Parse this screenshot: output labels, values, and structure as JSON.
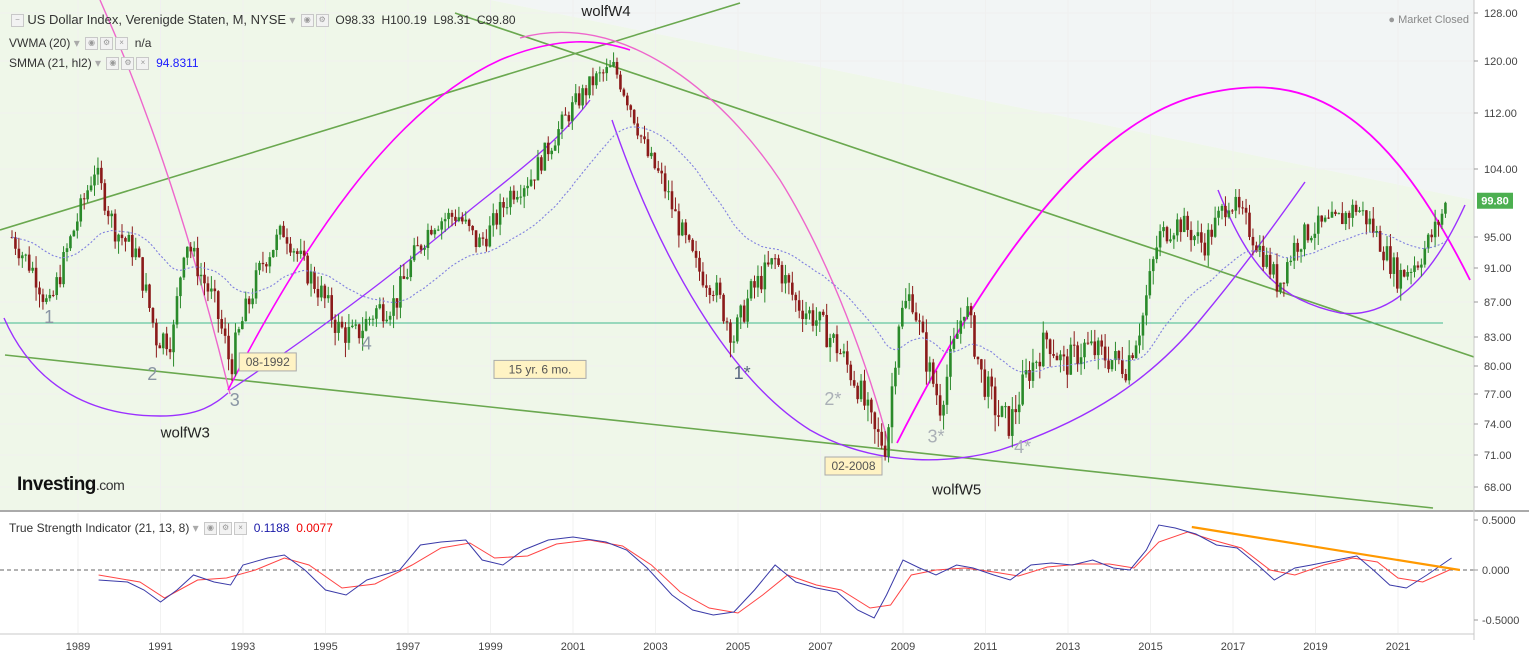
{
  "header": {
    "symbol": "US Dollar Index, Verenigde Staten, M, NYSE",
    "ohlc": {
      "open": "O98.33",
      "high": "H100.19",
      "low": "L98.31",
      "close": "C99.80"
    },
    "vwma": {
      "label": "VWMA (20)",
      "value": "n/a"
    },
    "smma": {
      "label": "SMMA (21, hl2)",
      "value": "94.8311"
    },
    "status": "Market Closed",
    "price_tag": "99.80"
  },
  "tsi_header": {
    "label": "True Strength Indicator (21, 13, 8)",
    "value1": "0.1188",
    "value2": "0.0077"
  },
  "logo": {
    "main": "Investing",
    "suffix": ".com"
  },
  "colors": {
    "up": "#2a8a2a",
    "down": "#8b1a1a",
    "wave": "#9b30ff",
    "arc_magenta": "#ff00ff",
    "arc_pink": "#ee66cc",
    "trend": "#6aa84f",
    "signal": "#ff4444",
    "tsi": "#3a3aa8",
    "divergence": "#ff9900",
    "price_tag": "#4caf50"
  },
  "chart_data": {
    "type": "candlestick",
    "x_axis": {
      "ticks": [
        "1989",
        "1991",
        "1993",
        "1995",
        "1997",
        "1999",
        "2001",
        "2003",
        "2005",
        "2007",
        "2009",
        "2011",
        "2013",
        "2015",
        "2017",
        "2019",
        "2021"
      ]
    },
    "y_axis": {
      "ticks": [
        "128.00",
        "120.00",
        "112.00",
        "104.00",
        "99.80",
        "95.00",
        "91.00",
        "87.00",
        "83.00",
        "80.00",
        "77.00",
        "74.00",
        "71.00",
        "68.00"
      ],
      "ylim": [
        66.5,
        129
      ]
    },
    "tsi_axis": {
      "ticks": [
        "0.5000",
        "0.000",
        "-0.5000"
      ],
      "ylim": [
        -0.55,
        0.56
      ]
    },
    "series_path": [
      [
        1987.4,
        95
      ],
      [
        1988.0,
        90
      ],
      [
        1988.3,
        86
      ],
      [
        1988.9,
        96
      ],
      [
        1989.4,
        104
      ],
      [
        1989.9,
        96
      ],
      [
        1990.4,
        93
      ],
      [
        1990.9,
        83
      ],
      [
        1991.3,
        83
      ],
      [
        1991.6,
        95
      ],
      [
        1992.0,
        90
      ],
      [
        1992.3,
        87
      ],
      [
        1992.7,
        80
      ],
      [
        1993.0,
        85
      ],
      [
        1993.5,
        92
      ],
      [
        1994.0,
        96
      ],
      [
        1994.5,
        91
      ],
      [
        1994.9,
        88
      ],
      [
        1995.3,
        84
      ],
      [
        1995.7,
        83
      ],
      [
        1996.2,
        86
      ],
      [
        1996.7,
        87
      ],
      [
        1997.1,
        92
      ],
      [
        1997.6,
        97
      ],
      [
        1998.2,
        98
      ],
      [
        1998.7,
        94
      ],
      [
        1999.0,
        96
      ],
      [
        1999.5,
        101
      ],
      [
        2000.0,
        103
      ],
      [
        2000.5,
        108
      ],
      [
        2001.0,
        113
      ],
      [
        2001.5,
        117
      ],
      [
        2002.0,
        119
      ],
      [
        2002.4,
        113
      ],
      [
        2002.8,
        106
      ],
      [
        2003.2,
        102
      ],
      [
        2003.6,
        96
      ],
      [
        2004.0,
        91
      ],
      [
        2004.4,
        89
      ],
      [
        2004.9,
        83
      ],
      [
        2005.3,
        88
      ],
      [
        2005.9,
        92
      ],
      [
        2006.4,
        87
      ],
      [
        2006.9,
        85
      ],
      [
        2007.4,
        82
      ],
      [
        2007.9,
        78
      ],
      [
        2008.3,
        73
      ],
      [
        2008.6,
        72
      ],
      [
        2008.9,
        85
      ],
      [
        2009.2,
        88
      ],
      [
        2009.6,
        80
      ],
      [
        2009.9,
        76
      ],
      [
        2010.3,
        83
      ],
      [
        2010.5,
        87
      ],
      [
        2010.9,
        79
      ],
      [
        2011.3,
        75
      ],
      [
        2011.6,
        74
      ],
      [
        2012.0,
        79
      ],
      [
        2012.5,
        83
      ],
      [
        2012.9,
        80
      ],
      [
        2013.4,
        82
      ],
      [
        2013.9,
        81
      ],
      [
        2014.4,
        80
      ],
      [
        2014.8,
        85
      ],
      [
        2015.2,
        95
      ],
      [
        2015.7,
        97
      ],
      [
        2016.3,
        94
      ],
      [
        2016.9,
        100
      ],
      [
        2017.3,
        97
      ],
      [
        2017.7,
        93
      ],
      [
        2018.1,
        89
      ],
      [
        2018.5,
        94
      ],
      [
        2018.9,
        96
      ],
      [
        2019.5,
        97
      ],
      [
        2020.0,
        99
      ],
      [
        2020.3,
        97
      ],
      [
        2020.7,
        93
      ],
      [
        2021.0,
        90
      ],
      [
        2021.5,
        92
      ],
      [
        2021.9,
        96
      ],
      [
        2022.2,
        99.8
      ]
    ],
    "annotations": [
      {
        "text": "1",
        "x": 1988.3,
        "y": 84.6
      },
      {
        "text": "2",
        "x": 1990.8,
        "y": 78.5
      },
      {
        "text": "3",
        "x": 1992.8,
        "y": 75.8
      },
      {
        "text": "4",
        "x": 1996.0,
        "y": 81.7
      },
      {
        "text": "1*",
        "x": 2005.1,
        "y": 78.6
      },
      {
        "text": "2*",
        "x": 2007.3,
        "y": 75.9
      },
      {
        "text": "3*",
        "x": 2009.8,
        "y": 72.2
      },
      {
        "text": "4*",
        "x": 2011.9,
        "y": 71.2
      },
      {
        "text": "wolfW3",
        "x": 1991.6,
        "y": 72.7
      },
      {
        "text": "wolfW4",
        "x": 2001.8,
        "y": 127.5
      },
      {
        "text": "wolfW5",
        "x": 2010.3,
        "y": 67.3
      }
    ],
    "boxed_labels": [
      {
        "text": "08-1992",
        "x": 1993.6,
        "y": 79.9
      },
      {
        "text": "15 yr. 6 mo.",
        "x": 2000.2,
        "y": 79.1
      },
      {
        "text": "02-2008",
        "x": 2007.8,
        "y": 69.5
      }
    ],
    "horizontal_level": 84.6,
    "tsi_series": [
      [
        1989.5,
        -0.1
      ],
      [
        1990.2,
        -0.12
      ],
      [
        1990.6,
        -0.2
      ],
      [
        1991.0,
        -0.32
      ],
      [
        1991.4,
        -0.2
      ],
      [
        1991.8,
        -0.05
      ],
      [
        1992.3,
        -0.12
      ],
      [
        1992.7,
        -0.15
      ],
      [
        1993.0,
        0.05
      ],
      [
        1993.6,
        0.12
      ],
      [
        1994.0,
        0.15
      ],
      [
        1994.5,
        0.0
      ],
      [
        1995.0,
        -0.2
      ],
      [
        1995.5,
        -0.25
      ],
      [
        1996.0,
        -0.1
      ],
      [
        1996.8,
        0.0
      ],
      [
        1997.3,
        0.25
      ],
      [
        1997.8,
        0.28
      ],
      [
        1998.4,
        0.3
      ],
      [
        1998.8,
        0.1
      ],
      [
        1999.3,
        0.05
      ],
      [
        1999.8,
        0.2
      ],
      [
        2000.4,
        0.3
      ],
      [
        2001.0,
        0.33
      ],
      [
        2001.8,
        0.28
      ],
      [
        2002.3,
        0.2
      ],
      [
        2002.8,
        0.02
      ],
      [
        2003.4,
        -0.25
      ],
      [
        2003.9,
        -0.4
      ],
      [
        2004.4,
        -0.45
      ],
      [
        2004.9,
        -0.42
      ],
      [
        2005.4,
        -0.2
      ],
      [
        2005.9,
        0.05
      ],
      [
        2006.4,
        -0.12
      ],
      [
        2006.9,
        -0.18
      ],
      [
        2007.4,
        -0.22
      ],
      [
        2007.9,
        -0.4
      ],
      [
        2008.3,
        -0.48
      ],
      [
        2008.6,
        -0.25
      ],
      [
        2009.0,
        0.1
      ],
      [
        2009.4,
        0.02
      ],
      [
        2009.8,
        -0.05
      ],
      [
        2010.3,
        0.05
      ],
      [
        2010.7,
        0.02
      ],
      [
        2011.2,
        -0.05
      ],
      [
        2011.6,
        -0.1
      ],
      [
        2012.1,
        0.05
      ],
      [
        2012.6,
        0.07
      ],
      [
        2013.1,
        0.05
      ],
      [
        2013.6,
        0.1
      ],
      [
        2014.1,
        0.02
      ],
      [
        2014.5,
        0.0
      ],
      [
        2014.9,
        0.2
      ],
      [
        2015.2,
        0.45
      ],
      [
        2015.6,
        0.42
      ],
      [
        2016.1,
        0.36
      ],
      [
        2016.6,
        0.25
      ],
      [
        2017.1,
        0.22
      ],
      [
        2017.6,
        0.05
      ],
      [
        2018.0,
        -0.1
      ],
      [
        2018.5,
        0.02
      ],
      [
        2018.9,
        0.05
      ],
      [
        2019.5,
        0.1
      ],
      [
        2020.0,
        0.14
      ],
      [
        2020.4,
        0.0
      ],
      [
        2020.8,
        -0.15
      ],
      [
        2021.2,
        -0.18
      ],
      [
        2021.7,
        -0.05
      ],
      [
        2022.3,
        0.12
      ]
    ],
    "tsi_signal": [
      [
        1989.5,
        -0.05
      ],
      [
        1990.5,
        -0.12
      ],
      [
        1991.1,
        -0.28
      ],
      [
        1991.9,
        -0.1
      ],
      [
        1992.6,
        -0.08
      ],
      [
        1993.3,
        0.0
      ],
      [
        1994.0,
        0.12
      ],
      [
        1994.6,
        0.05
      ],
      [
        1995.4,
        -0.18
      ],
      [
        1996.2,
        -0.14
      ],
      [
        1997.1,
        0.05
      ],
      [
        1997.8,
        0.22
      ],
      [
        1998.5,
        0.27
      ],
      [
        1999.1,
        0.12
      ],
      [
        1999.9,
        0.14
      ],
      [
        2000.6,
        0.26
      ],
      [
        2001.4,
        0.3
      ],
      [
        2002.2,
        0.24
      ],
      [
        2002.9,
        0.05
      ],
      [
        2003.6,
        -0.22
      ],
      [
        2004.3,
        -0.38
      ],
      [
        2005.0,
        -0.43
      ],
      [
        2005.6,
        -0.25
      ],
      [
        2006.2,
        -0.05
      ],
      [
        2006.9,
        -0.15
      ],
      [
        2007.5,
        -0.2
      ],
      [
        2008.2,
        -0.38
      ],
      [
        2008.7,
        -0.35
      ],
      [
        2009.2,
        -0.05
      ],
      [
        2009.8,
        0.0
      ],
      [
        2010.5,
        0.02
      ],
      [
        2011.2,
        -0.02
      ],
      [
        2011.8,
        -0.06
      ],
      [
        2012.5,
        0.03
      ],
      [
        2013.3,
        0.06
      ],
      [
        2014.0,
        0.06
      ],
      [
        2014.6,
        0.02
      ],
      [
        2015.2,
        0.28
      ],
      [
        2015.9,
        0.38
      ],
      [
        2016.5,
        0.3
      ],
      [
        2017.2,
        0.22
      ],
      [
        2017.9,
        0.0
      ],
      [
        2018.5,
        -0.05
      ],
      [
        2019.2,
        0.05
      ],
      [
        2019.9,
        0.12
      ],
      [
        2020.5,
        0.08
      ],
      [
        2021.0,
        -0.08
      ],
      [
        2021.6,
        -0.12
      ],
      [
        2022.3,
        0.01
      ]
    ],
    "divergence_line": [
      [
        2016.0,
        0.43
      ],
      [
        2022.5,
        0.0
      ]
    ]
  }
}
